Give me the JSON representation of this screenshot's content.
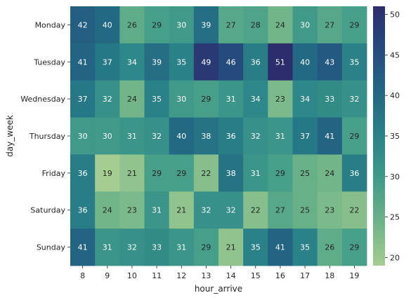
{
  "chart_data": {
    "type": "heatmap",
    "xlabel": "hour_arrive",
    "ylabel": "day_week",
    "x_categories": [
      "8",
      "9",
      "10",
      "11",
      "12",
      "13",
      "14",
      "15",
      "16",
      "17",
      "18",
      "19"
    ],
    "y_categories": [
      "Monday",
      "Tuesday",
      "Wednesday",
      "Thursday",
      "Friday",
      "Saturday",
      "Sunday"
    ],
    "values": [
      [
        42,
        40,
        26,
        29,
        30,
        39,
        27,
        28,
        24,
        30,
        27,
        29
      ],
      [
        41,
        37,
        34,
        39,
        35,
        49,
        46,
        36,
        51,
        40,
        43,
        35
      ],
      [
        37,
        32,
        24,
        35,
        30,
        29,
        31,
        34,
        23,
        34,
        33,
        32
      ],
      [
        30,
        30,
        31,
        32,
        40,
        38,
        36,
        32,
        31,
        37,
        41,
        29
      ],
      [
        36,
        19,
        21,
        29,
        29,
        22,
        38,
        31,
        29,
        25,
        24,
        36
      ],
      [
        36,
        24,
        23,
        31,
        21,
        32,
        32,
        22,
        27,
        25,
        23,
        22
      ],
      [
        41,
        31,
        32,
        33,
        31,
        29,
        21,
        35,
        41,
        35,
        26,
        29
      ]
    ],
    "annotated": true,
    "colorbar": {
      "range": [
        19,
        51
      ],
      "ticks": [
        "20",
        "25",
        "30",
        "35",
        "40",
        "45",
        "50"
      ],
      "tick_values": [
        20,
        25,
        30,
        35,
        40,
        45,
        50
      ]
    },
    "colormap": "crest",
    "colormap_stops": [
      "#a5cd90",
      "#6db388",
      "#419b89",
      "#2a8288",
      "#236784",
      "#254c7f",
      "#2c2d6c"
    ],
    "text_color_dark": "#262626",
    "text_color_light": "#ffffff"
  }
}
